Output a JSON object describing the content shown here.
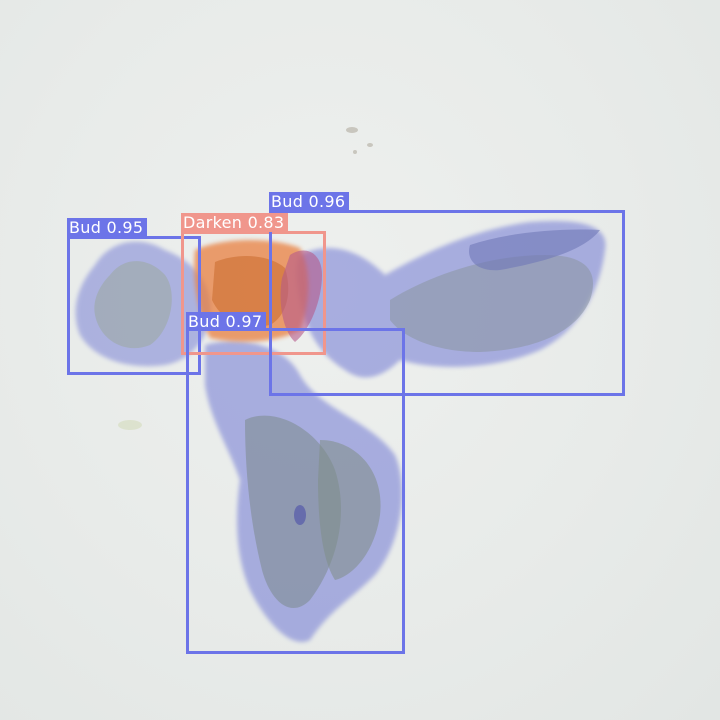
{
  "image": {
    "description": "Plant buds on a light background with segmentation masks and detection boxes",
    "colors": {
      "background": "#e9eceb",
      "bud_box": "#6c74e8",
      "bud_mask": "#7a82d6",
      "darken_box": "#f0968c",
      "darken_mask": "#e9803f",
      "label_text": "#ffffff"
    }
  },
  "detections": [
    {
      "class": "Bud",
      "score": "0.95",
      "text": "Bud 0.95"
    },
    {
      "class": "Darken",
      "score": "0.83",
      "text": "Darken 0.83"
    },
    {
      "class": "Bud",
      "score": "0.96",
      "text": "Bud 0.96"
    },
    {
      "class": "Bud",
      "score": "0.97",
      "text": "Bud 0.97"
    }
  ]
}
